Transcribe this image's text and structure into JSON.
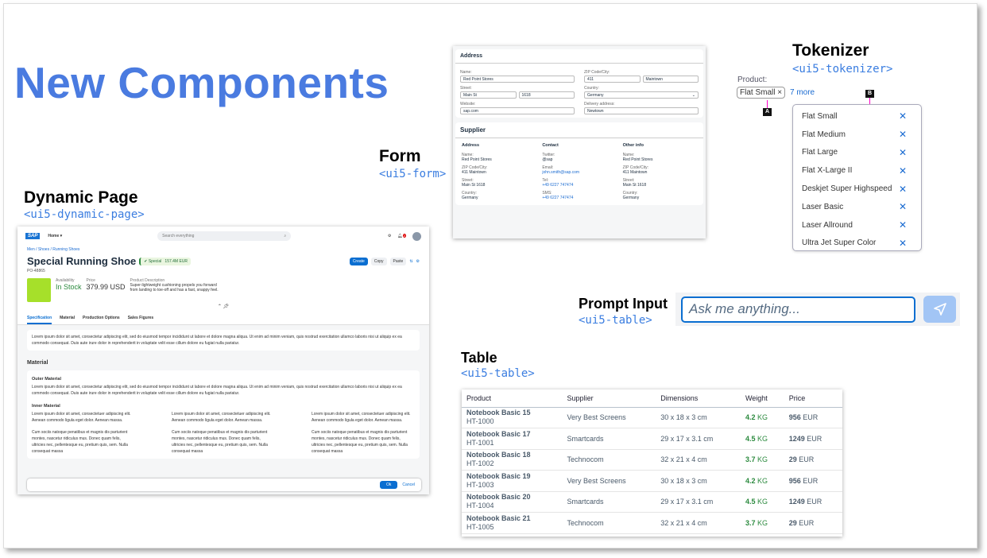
{
  "slide": {
    "title": "New Components"
  },
  "dynamic_page": {
    "label": "Dynamic Page",
    "tag": "<ui5-dynamic-page>",
    "shell": {
      "logo": "SAP",
      "home": "Home",
      "search_placeholder": "Search everything",
      "notification_count": "2"
    },
    "breadcrumb": "Men / Shoes / Running Shoes",
    "title": "Special Running Shoe",
    "status": "Special",
    "status_value": "157.4M EUR",
    "subtitle": "PO-48865",
    "actions": {
      "create": "Create",
      "copy": "Copy",
      "paste": "Paste"
    },
    "header": {
      "availability_label": "Availability",
      "availability": "In Stock",
      "price_label": "Price",
      "price": "379.99 USD",
      "desc_label": "Product Description",
      "desc": "Super-lightweight cushioning propels you forward from landing to toe-off and has a fast, snappy feel."
    },
    "tabs": [
      "Specification",
      "Material",
      "Production Options",
      "Sales Figures"
    ],
    "spec_text": "Lorem ipsum dolor sit amet, consectetur adipiscing elit, sed do eiusmod tempor incididunt ut labore et dolore magna aliqua. Ut enim ad minim veniam, quis nostrud exercitation ullamco laboris nisi ut aliquip ex ea commodo consequat. Duis aute irure dolor in reprehenderit in voluptate velit esse cillum dolore eu fugiat nulla pariatur.",
    "material_title": "Material",
    "outer_title": "Outer Material",
    "outer_text": "Lorem ipsum dolor sit amet, consectetur adipiscing elit, sed do eiusmod tempor incididunt ut labore et dolore magna aliqua. Ut enim ad minim veniam, quis nostrud exercitation ullamco laboris nisi ut aliquip ex ea commodo consequat. Duis aute irure dolor in reprehenderit in voluptate velit esse cillum dolore eu fugiat nulla pariatur.",
    "inner_title": "Inner Material",
    "inner_p1": "Lorem ipsum dolor sit amet, consectetuer adipiscing elit. Aenean commodo ligula eget dolor. Aenean massa.",
    "inner_p2": "Cum sociis natoque penatibus et magnis dis parturient montes, nascetur ridiculus mus. Donec quam felis, ultricies nec, pellentesque eu, pretium quis, sem. Nulla consequat massa",
    "ok": "Ok",
    "cancel": "Cancel"
  },
  "form": {
    "label": "Form",
    "tag": "<ui5-form>",
    "address_title": "Address",
    "name_label": "Name:",
    "name": "Red Point Stores",
    "zip_label": "ZIP Code/City:",
    "zip": "411",
    "city": "Maintown",
    "street_label": "Street:",
    "street": "Main St",
    "number": "1618",
    "country_label": "Country:",
    "country": "Germany",
    "website_label": "Website:",
    "website": "sap.com",
    "delivery_label": "Delivery address:",
    "delivery": "Newtown",
    "supplier_title": "Supplier",
    "groups": [
      {
        "title": "Address",
        "items": [
          {
            "k": "Name:",
            "v": "Red Point Stores"
          },
          {
            "k": "ZIP Code/City:",
            "v": "411 Maintown"
          },
          {
            "k": "Street:",
            "v": "Main St 1618"
          },
          {
            "k": "Country:",
            "v": "Germany"
          }
        ]
      },
      {
        "title": "Contact",
        "items": [
          {
            "k": "Twitter:",
            "v": "@sap"
          },
          {
            "k": "Email:",
            "v": "john.smith@sap.com"
          },
          {
            "k": "Tel:",
            "v": "+49 6227 747474"
          },
          {
            "k": "SMS:",
            "v": "+49 6227 747474"
          }
        ]
      },
      {
        "title": "Other info",
        "items": [
          {
            "k": "Name:",
            "v": "Red Point Stores"
          },
          {
            "k": "ZIP Code/City:",
            "v": "411 Maintown"
          },
          {
            "k": "Street:",
            "v": "Main St 1618"
          },
          {
            "k": "Country:",
            "v": "Germany"
          }
        ]
      }
    ]
  },
  "tokenizer": {
    "label": "Tokenizer",
    "tag": "<ui5-tokenizer>",
    "field_label": "Product:",
    "token": "Flat Small",
    "more": "7 more",
    "marker_a": "A",
    "marker_b": "B",
    "items": [
      "Flat Small",
      "Flat Medium",
      "Flat Large",
      "Flat X-Large II",
      "Deskjet Super Highspeed",
      "Laser Basic",
      "Laser Allround",
      "Ultra Jet Super Color"
    ]
  },
  "prompt": {
    "label": "Prompt Input",
    "tag": "<ui5-table>",
    "placeholder": "Ask me anything..."
  },
  "table": {
    "label": "Table",
    "tag": "<ui5-table>",
    "columns": [
      "Product",
      "Supplier",
      "Dimensions",
      "Weight",
      "Price"
    ],
    "rows": [
      {
        "name": "Notebook Basic 15",
        "id": "HT-1000",
        "supplier": "Very Best Screens",
        "dim": "30 x 18 x 3 cm",
        "weight": "4.2",
        "wunit": "KG",
        "price": "956",
        "cur": "EUR"
      },
      {
        "name": "Notebook Basic 17",
        "id": "HT-1001",
        "supplier": "Smartcards",
        "dim": "29 x 17 x 3.1 cm",
        "weight": "4.5",
        "wunit": "KG",
        "price": "1249",
        "cur": "EUR"
      },
      {
        "name": "Notebook Basic 18",
        "id": "HT-1002",
        "supplier": "Technocom",
        "dim": "32 x 21 x 4 cm",
        "weight": "3.7",
        "wunit": "KG",
        "price": "29",
        "cur": "EUR"
      },
      {
        "name": "Notebook Basic 19",
        "id": "HT-1003",
        "supplier": "Very Best Screens",
        "dim": "30 x 18 x 3 cm",
        "weight": "4.2",
        "wunit": "KG",
        "price": "956",
        "cur": "EUR"
      },
      {
        "name": "Notebook Basic 20",
        "id": "HT-1004",
        "supplier": "Smartcards",
        "dim": "29 x 17 x 3.1 cm",
        "weight": "4.5",
        "wunit": "KG",
        "price": "1249",
        "cur": "EUR"
      },
      {
        "name": "Notebook Basic 21",
        "id": "HT-1005",
        "supplier": "Technocom",
        "dim": "32 x 21 x 4 cm",
        "weight": "3.7",
        "wunit": "KG",
        "price": "29",
        "cur": "EUR"
      }
    ]
  },
  "colors": {
    "title": "#4a7be0",
    "accent": "#0a6ed1",
    "positive": "#2b8a3e",
    "marker": "#ff00cc"
  }
}
